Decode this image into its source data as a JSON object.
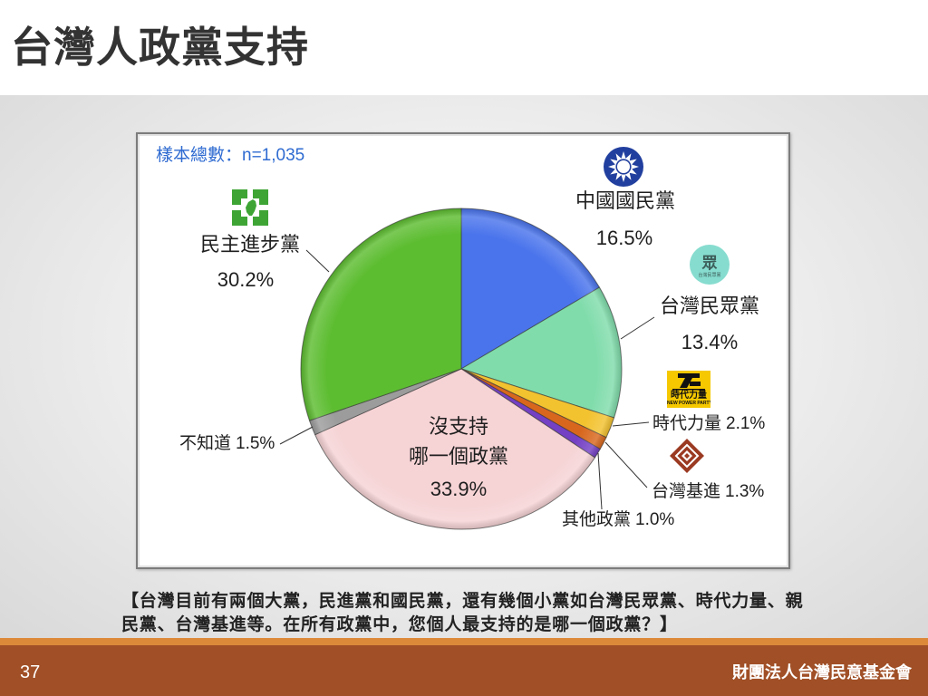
{
  "slide": {
    "title": "台灣人政黨支持",
    "question_lines": [
      "【台灣目前有兩個大黨，民進黨和國民黨，還有幾個小黨如台灣民眾黨、時代力量、親",
      "民黨、台灣基進等。在所有政黨中，您個人最支持的是哪一個政黨？】"
    ],
    "page_number": "37",
    "organization": "財團法人台灣民意基金會"
  },
  "theme": {
    "title_color": "#333333",
    "sample_color": "#2f6bd1",
    "footer_color": "#a04f26",
    "footer_stripe_color": "#dc8a3a"
  },
  "logos": {
    "kmt": {
      "icon": "kmt-blue-sky-white-sun-icon",
      "color": "#213f9e"
    },
    "tpp": {
      "icon": "tpp-logo-icon",
      "color": "#86dccf",
      "glyph": "眾",
      "caption": "台灣民眾黨"
    },
    "npp": {
      "icon": "npp-logo-icon",
      "color": "#f5c800",
      "name": "時代力量",
      "english": "NEW POWER PARTY"
    },
    "tsp": {
      "icon": "tsp-diamond-logo-icon",
      "color": "#9b3a22"
    },
    "dpp": {
      "icon": "dpp-logo-icon",
      "color": "#3ea535"
    }
  },
  "chart_data": {
    "type": "pie",
    "sample_note": "樣本總數：n=1,035",
    "slices": [
      {
        "label_lines": [
          "中國國民黨"
        ],
        "value": 16.5,
        "value_label": "16.5%",
        "color": "#4a74ec"
      },
      {
        "label_lines": [
          "台灣民眾黨"
        ],
        "value": 13.4,
        "value_label": "13.4%",
        "color": "#80dcab"
      },
      {
        "label_lines": [
          "時代力量"
        ],
        "value": 2.1,
        "value_label": "2.1%",
        "color": "#f3c22f"
      },
      {
        "label_lines": [
          "台灣基進"
        ],
        "value": 1.3,
        "value_label": "1.3%",
        "color": "#d8671d"
      },
      {
        "label_lines": [
          "其他政黨"
        ],
        "value": 1.0,
        "value_label": "1.0%",
        "color": "#7440c4"
      },
      {
        "label_lines": [
          "沒支持",
          "哪一個政黨"
        ],
        "value": 33.9,
        "value_label": "33.9%",
        "color": "#f6d3d5"
      },
      {
        "label_lines": [
          "不知道"
        ],
        "value": 1.5,
        "value_label": "1.5%",
        "color": "#9c9c9c"
      },
      {
        "label_lines": [
          "民主進步黨"
        ],
        "value": 30.2,
        "value_label": "30.2%",
        "color": "#5dbd31"
      }
    ]
  }
}
